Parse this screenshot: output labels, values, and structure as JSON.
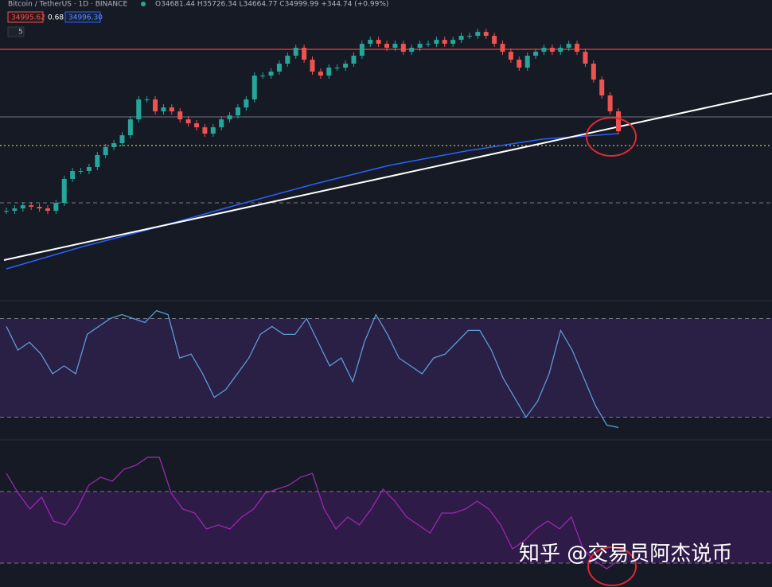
{
  "header": {
    "symbol": "Bitcoin / TetherUS · 1D · BINANCE",
    "ohlc": "O34681.44 H35726.34 L34664.77 C34999.99 +344.74 (+0.99%)",
    "badges": [
      "34995.62",
      "0.68",
      "34996.30"
    ],
    "indicators": "5"
  },
  "watermark": "知乎 @交易员阿杰说币",
  "chart_data": [
    {
      "type": "candlestick",
      "ylim": [
        13140,
        51140
      ],
      "close": [
        24590,
        24900,
        25320,
        25110,
        24900,
        24590,
        25630,
        28760,
        29800,
        29800,
        30320,
        31880,
        32920,
        33440,
        34480,
        36560,
        39170,
        39170,
        37600,
        38120,
        37600,
        36560,
        36040,
        35520,
        34690,
        35520,
        36560,
        37080,
        38120,
        39170,
        42290,
        42290,
        42810,
        43850,
        44890,
        45930,
        44370,
        42810,
        42290,
        43330,
        43330,
        43850,
        44890,
        46450,
        46970,
        46450,
        45930,
        46450,
        45410,
        45930,
        46450,
        46450,
        46970,
        46450,
        46970,
        47490,
        47490,
        48010,
        47490,
        46450,
        45410,
        44370,
        43330,
        44890,
        45410,
        45930,
        45410,
        45930,
        46450,
        45410,
        43850,
        41770,
        39690,
        37610,
        35000
      ],
      "up_color": "#26a69a",
      "down_color": "#ef5350",
      "ma": {
        "values": [
          16992,
          19907,
          22509,
          25320,
          28026,
          30525,
          32399,
          33960,
          34689
        ],
        "color": "#2962ff"
      },
      "trendline": {
        "values": [
          18137,
          39957
        ],
        "color": "#ffffff"
      },
      "levels": [
        {
          "value": 45720,
          "color": "#e53935",
          "style": "solid"
        },
        {
          "value": 36875,
          "color": "#5d606b",
          "style": "solid"
        },
        {
          "value": 33130,
          "color": "#f5e663",
          "style": "dotted"
        },
        {
          "value": 25630,
          "color": "#787b86",
          "style": "dashed"
        }
      ]
    },
    {
      "type": "line",
      "ylim": [
        25,
        75
      ],
      "color": "#5b9bd5",
      "band_color": "#2a1f45",
      "levels": [
        70,
        30
      ],
      "values": [
        66.8,
        57.2,
        60.4,
        55.6,
        47.6,
        50.8,
        47.6,
        63.6,
        66.8,
        70,
        71.6,
        70,
        68.4,
        73.2,
        71.6,
        54,
        55.6,
        47.6,
        38,
        41.2,
        47.6,
        54,
        63.6,
        66.8,
        63.6,
        63.6,
        70,
        60.4,
        50.8,
        54,
        44.4,
        60.4,
        71.6,
        63.6,
        54,
        50.8,
        47.6,
        54,
        55.6,
        60.4,
        65.2,
        65.2,
        57.2,
        46,
        38,
        30,
        36.4,
        47.6,
        65.2,
        57.2,
        46,
        34.8,
        26.8,
        25.8
      ]
    },
    {
      "type": "line",
      "ylim": [
        2,
        112
      ],
      "color": "#9c27b0",
      "band_color": "#2e1b47",
      "levels": [
        80,
        20
      ],
      "values": [
        95.3,
        78.7,
        65.3,
        75.3,
        55.3,
        52,
        65.3,
        85.3,
        92,
        88.7,
        98.7,
        102,
        108.7,
        108.7,
        78.7,
        65.3,
        62,
        48.7,
        52,
        48.7,
        58.7,
        65.3,
        78.7,
        82,
        85.3,
        92,
        95.3,
        65.3,
        48.7,
        58.7,
        52,
        65.3,
        82,
        72,
        58.7,
        52,
        45.3,
        62,
        62,
        65.3,
        72,
        65.3,
        52,
        32,
        38.7,
        48.7,
        55.3,
        48.7,
        58.7,
        32,
        22,
        15.3,
        22
      ]
    }
  ]
}
